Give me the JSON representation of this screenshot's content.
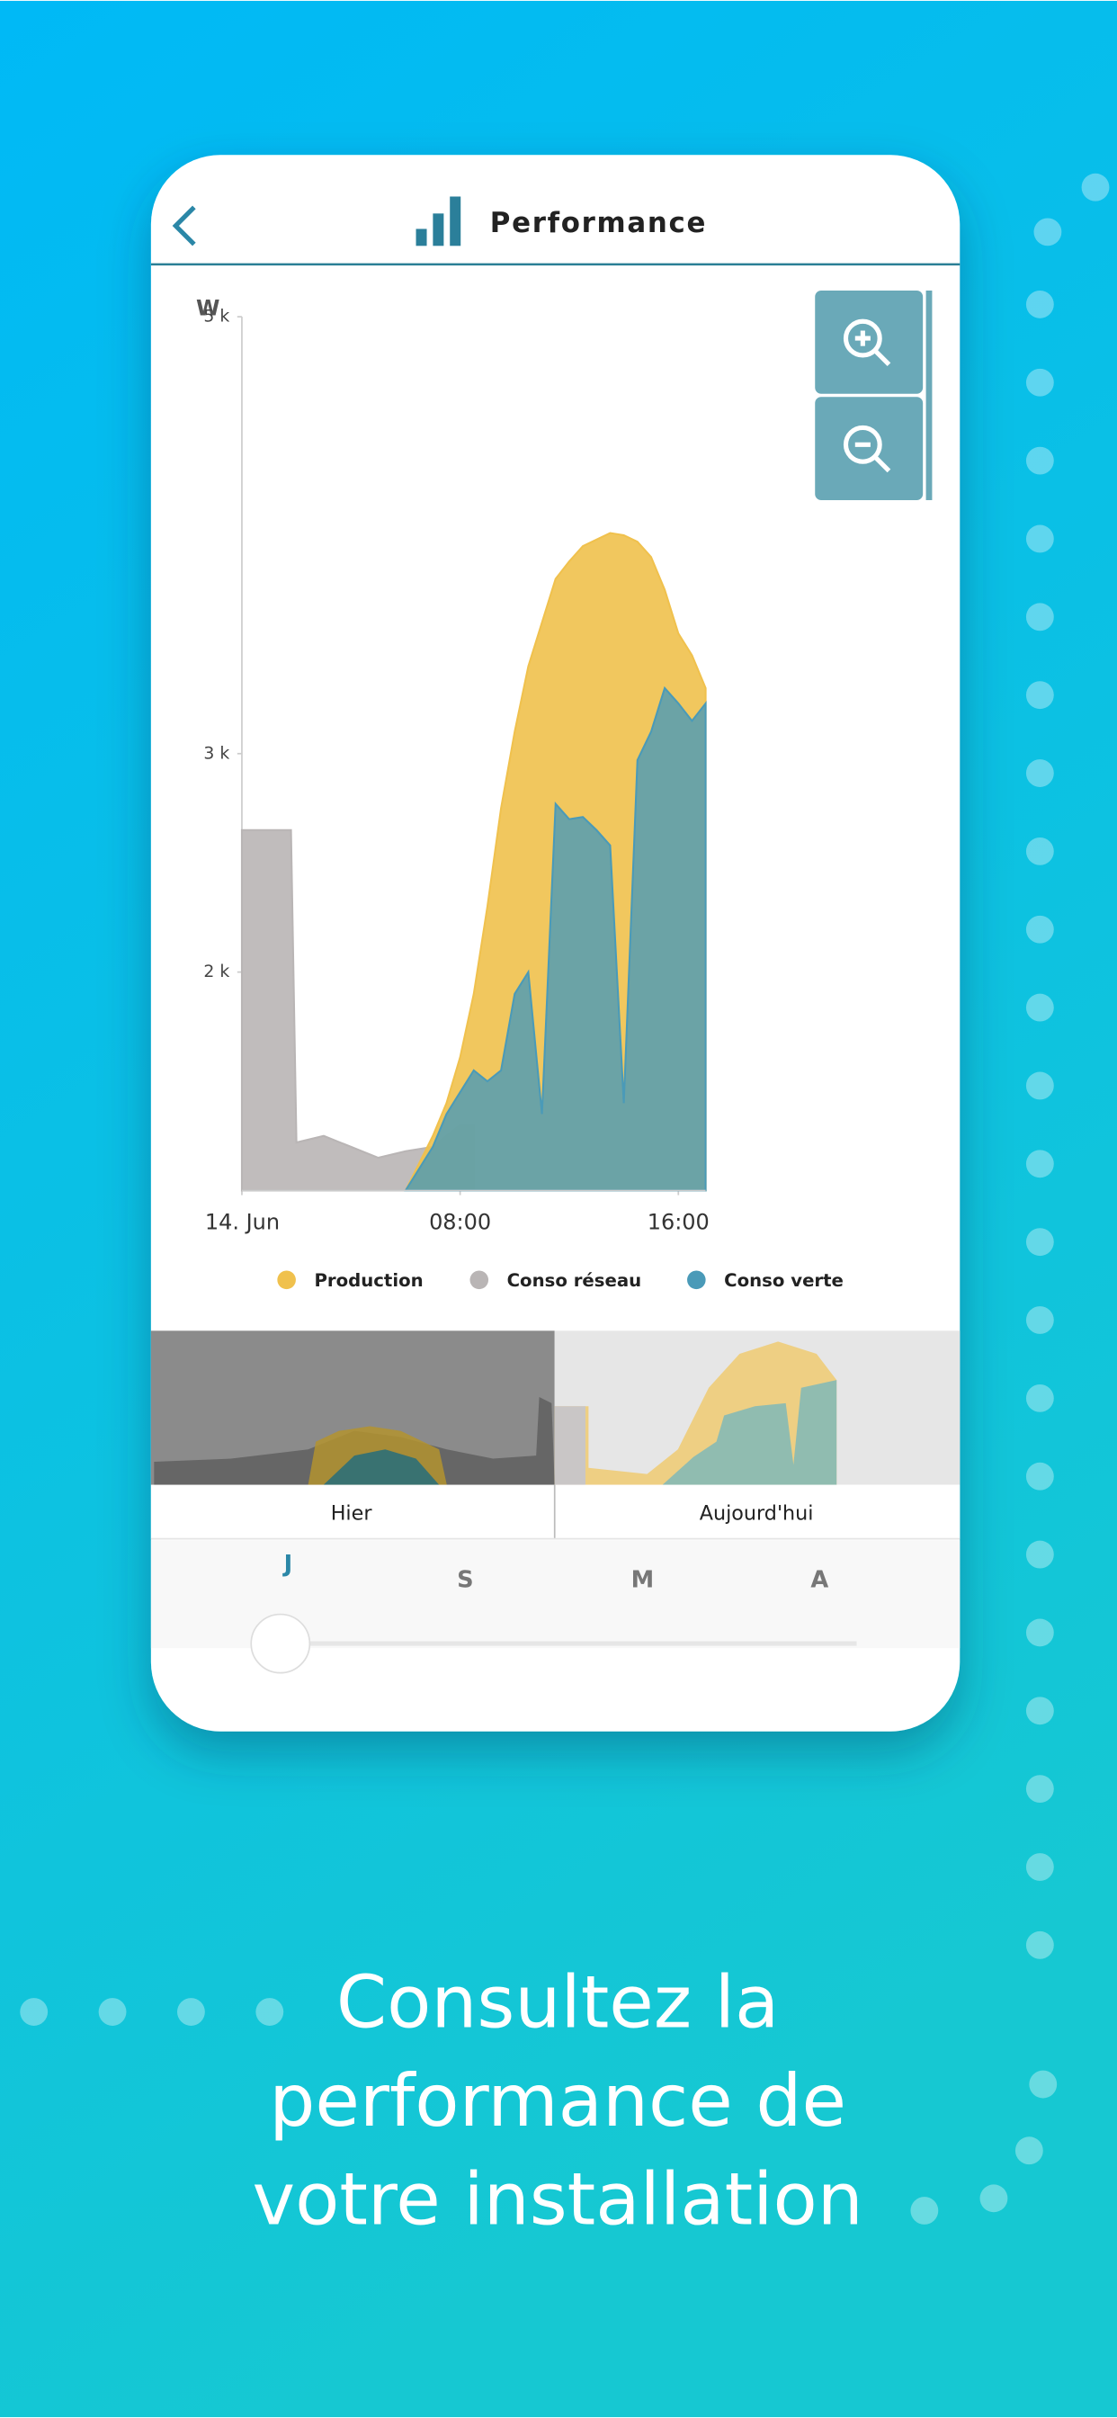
{
  "screen": {
    "header": {
      "title": "Performance"
    },
    "chart_data": {
      "type": "area",
      "y_label": "W",
      "x": [
        0,
        1,
        1.8,
        2,
        3,
        4,
        5,
        6,
        7,
        7.5,
        8,
        8.5,
        9,
        9.5,
        10,
        10.5,
        11,
        11.5,
        12,
        12.5,
        13,
        13.5,
        14,
        14.5,
        15,
        15.5,
        16,
        16.5,
        17
      ],
      "xlim": [
        0,
        17
      ],
      "xticks": [
        {
          "value": 0,
          "label": "14. Jun"
        },
        {
          "value": 8,
          "label": "08:00"
        },
        {
          "value": 16,
          "label": "16:00"
        }
      ],
      "ylim": [
        1000,
        5000
      ],
      "yticks": [
        {
          "value": 2000,
          "label": "2 k"
        },
        {
          "value": 3000,
          "label": "3 k"
        },
        {
          "value": 5000,
          "label": "5 k"
        }
      ],
      "series": [
        {
          "name": "Conso réseau",
          "color": "#b9b5b5",
          "values": [
            2650,
            2650,
            2650,
            1220,
            1250,
            1200,
            1150,
            1180,
            1200,
            1250,
            1300,
            1300,
            null,
            null,
            null,
            null,
            null,
            null,
            null,
            null,
            null,
            null,
            null,
            null,
            null,
            null,
            null,
            null,
            null
          ]
        },
        {
          "name": "Production",
          "color": "#f0c14d",
          "values": [
            null,
            null,
            null,
            null,
            null,
            null,
            null,
            1000,
            1250,
            1400,
            1610,
            1900,
            2300,
            2750,
            3100,
            3400,
            3600,
            3800,
            3880,
            3950,
            3980,
            4010,
            4000,
            3970,
            3900,
            3750,
            3550,
            3450,
            3300
          ]
        },
        {
          "name": "Conso verte",
          "color": "#4a9ab8",
          "values": [
            null,
            null,
            null,
            null,
            null,
            null,
            null,
            1000,
            1200,
            1350,
            1450,
            1550,
            1500,
            1550,
            1900,
            2000,
            1350,
            2770,
            2700,
            2710,
            2650,
            2580,
            1400,
            2970,
            3100,
            3300,
            3230,
            3150,
            3230
          ]
        }
      ]
    },
    "periods": [
      "Hier",
      "Aujourd'hui"
    ],
    "ranges": [
      "J",
      "S",
      "M",
      "A"
    ],
    "headline": [
      "Consultez la",
      "performance de",
      "votre installation"
    ]
  }
}
